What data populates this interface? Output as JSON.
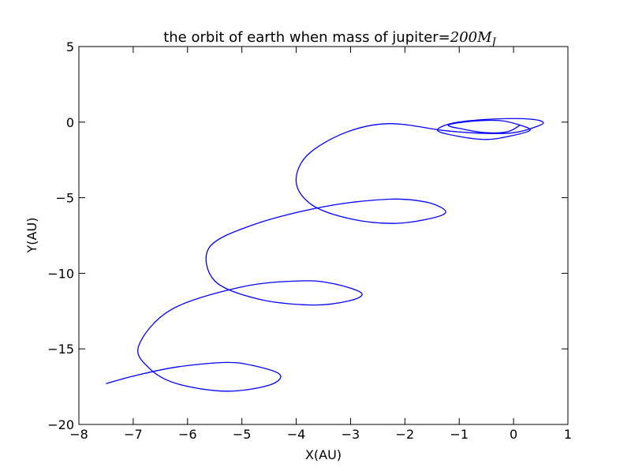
{
  "chart_data": {
    "type": "line",
    "title": "the orbit of earth when mass of jupiter=",
    "title_math": "200M",
    "title_math_sub": "J",
    "xlabel": "X(AU)",
    "ylabel": "Y(AU)",
    "xlim": [
      -8,
      1
    ],
    "ylim": [
      -20,
      5
    ],
    "xticks": [
      -8,
      -7,
      -6,
      -5,
      -4,
      -3,
      -2,
      -1,
      0,
      1
    ],
    "xtick_labels": [
      "−8",
      "−7",
      "−6",
      "−5",
      "−4",
      "−3",
      "−2",
      "−1",
      "0",
      "1"
    ],
    "yticks": [
      5,
      0,
      -5,
      -10,
      -15,
      -20
    ],
    "ytick_labels": [
      "5",
      "0",
      "−5",
      "−10",
      "−15",
      "−20"
    ],
    "grid": false,
    "series": [
      {
        "color": "#0000ff",
        "points": [
          [
            0.12,
            -0.2
          ],
          [
            -0.1,
            -0.62
          ],
          [
            -0.5,
            -0.7
          ],
          [
            -0.95,
            -0.45
          ],
          [
            -1.2,
            -0.2
          ],
          [
            -0.8,
            0.05
          ],
          [
            -0.25,
            0.1
          ],
          [
            0.12,
            -0.2
          ],
          [
            0.3,
            -0.55
          ],
          [
            -0.1,
            -0.95
          ],
          [
            -0.5,
            -1.15
          ],
          [
            -1.0,
            -0.95
          ],
          [
            -1.4,
            -0.55
          ],
          [
            -1.1,
            -0.05
          ],
          [
            -0.4,
            0.2
          ],
          [
            0.3,
            0.2
          ],
          [
            0.55,
            -0.05
          ],
          [
            0.3,
            -0.45
          ],
          [
            0.0,
            -0.7
          ],
          [
            -0.3,
            -0.75
          ],
          [
            -0.8,
            -0.7
          ],
          [
            -1.3,
            -0.55
          ],
          [
            -2.3,
            -0.1
          ],
          [
            -3.1,
            -0.7
          ],
          [
            -3.8,
            -2.2
          ],
          [
            -4.0,
            -4.0
          ],
          [
            -3.7,
            -5.5
          ],
          [
            -3.0,
            -6.4
          ],
          [
            -2.2,
            -6.7
          ],
          [
            -1.5,
            -6.35
          ],
          [
            -1.25,
            -5.9
          ],
          [
            -1.6,
            -5.3
          ],
          [
            -2.3,
            -5.1
          ],
          [
            -3.5,
            -5.6
          ],
          [
            -4.8,
            -6.8
          ],
          [
            -5.6,
            -8.3
          ],
          [
            -5.5,
            -10.5
          ],
          [
            -4.7,
            -11.7
          ],
          [
            -3.7,
            -12.1
          ],
          [
            -3.0,
            -11.8
          ],
          [
            -2.8,
            -11.3
          ],
          [
            -3.3,
            -10.7
          ],
          [
            -3.9,
            -10.5
          ],
          [
            -5.0,
            -10.9
          ],
          [
            -6.3,
            -12.4
          ],
          [
            -6.9,
            -14.8
          ],
          [
            -6.7,
            -16.3
          ],
          [
            -6.2,
            -17.3
          ],
          [
            -5.3,
            -17.8
          ],
          [
            -4.5,
            -17.4
          ],
          [
            -4.3,
            -16.7
          ],
          [
            -4.8,
            -16.1
          ],
          [
            -5.3,
            -15.9
          ],
          [
            -6.2,
            -16.2
          ],
          [
            -7.0,
            -16.8
          ],
          [
            -7.5,
            -17.3
          ]
        ]
      }
    ]
  }
}
